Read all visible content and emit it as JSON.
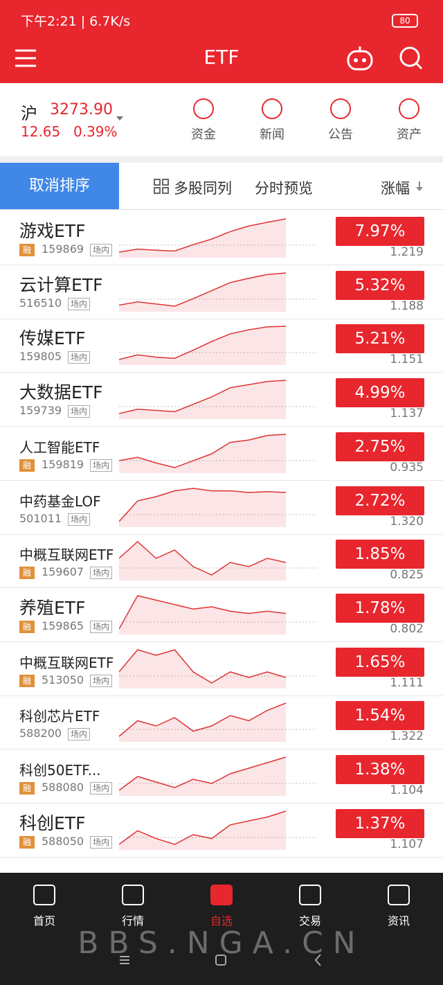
{
  "status_bar": {
    "time": "下午2:21 | 6.7K/s",
    "battery": "80"
  },
  "header": {
    "title": "ETF"
  },
  "index": {
    "name": "沪",
    "value": "3273.90",
    "change": "12.65",
    "change_pct": "0.39%"
  },
  "shortcuts": [
    "资金",
    "新闻",
    "公告",
    "资产"
  ],
  "toolbar": {
    "cancel_sort": "取消排序",
    "multi": "多股同列",
    "preview": "分时预览",
    "sort_by": "涨幅"
  },
  "rows": [
    {
      "name": "游戏ETF",
      "margin": "融",
      "code": "159869",
      "market": "场内",
      "change": "7.97%",
      "price": "1.219",
      "trend": [
        1.13,
        1.138,
        1.135,
        1.133,
        1.15,
        1.165,
        1.185,
        1.2,
        1.21,
        1.219
      ]
    },
    {
      "name": "云计算ETF",
      "code": "516510",
      "market": "场内",
      "change": "5.32%",
      "price": "1.188",
      "trend": [
        1.128,
        1.134,
        1.13,
        1.126,
        1.14,
        1.155,
        1.17,
        1.178,
        1.185,
        1.188
      ]
    },
    {
      "name": "传媒ETF",
      "code": "159805",
      "market": "场内",
      "change": "5.21%",
      "price": "1.151",
      "trend": [
        1.094,
        1.102,
        1.098,
        1.096,
        1.11,
        1.125,
        1.138,
        1.145,
        1.15,
        1.151
      ]
    },
    {
      "name": "大数据ETF",
      "code": "159739",
      "market": "场内",
      "change": "4.99%",
      "price": "1.137",
      "trend": [
        1.083,
        1.09,
        1.088,
        1.086,
        1.098,
        1.11,
        1.125,
        1.13,
        1.135,
        1.137
      ]
    },
    {
      "name": "人工智能ETF",
      "margin": "融",
      "code": "159819",
      "market": "场内",
      "change": "2.75%",
      "price": "0.935",
      "trend": [
        0.912,
        0.915,
        0.91,
        0.906,
        0.912,
        0.918,
        0.928,
        0.93,
        0.934,
        0.935
      ]
    },
    {
      "name": "中药基金LOF",
      "code": "501011",
      "market": "场内",
      "change": "2.72%",
      "price": "1.320",
      "trend": [
        1.285,
        1.31,
        1.315,
        1.322,
        1.325,
        1.322,
        1.322,
        1.32,
        1.321,
        1.32
      ]
    },
    {
      "name": "中概互联网ETF",
      "margin": "融",
      "code": "159607",
      "market": "场内",
      "change": "1.85%",
      "price": "0.825",
      "trend": [
        0.826,
        0.83,
        0.826,
        0.828,
        0.824,
        0.822,
        0.825,
        0.824,
        0.826,
        0.825
      ]
    },
    {
      "name": "养殖ETF",
      "margin": "融",
      "code": "159865",
      "market": "场内",
      "change": "1.78%",
      "price": "0.802",
      "trend": [
        0.795,
        0.81,
        0.808,
        0.806,
        0.804,
        0.805,
        0.803,
        0.802,
        0.803,
        0.802
      ]
    },
    {
      "name": "中概互联网ETF",
      "margin": "融",
      "code": "513050",
      "market": "场内",
      "change": "1.65%",
      "price": "1.111",
      "trend": [
        1.112,
        1.116,
        1.115,
        1.116,
        1.112,
        1.11,
        1.112,
        1.111,
        1.112,
        1.111
      ]
    },
    {
      "name": "科创芯片ETF",
      "code": "588200",
      "market": "场内",
      "change": "1.54%",
      "price": "1.322",
      "trend": [
        1.29,
        1.305,
        1.3,
        1.308,
        1.295,
        1.3,
        1.31,
        1.305,
        1.315,
        1.322
      ]
    },
    {
      "name": "科创50ETF...",
      "margin": "融",
      "code": "588080",
      "market": "场内",
      "change": "1.38%",
      "price": "1.104",
      "trend": [
        1.08,
        1.09,
        1.086,
        1.082,
        1.088,
        1.085,
        1.092,
        1.096,
        1.1,
        1.104
      ]
    },
    {
      "name": "科创ETF",
      "margin": "融",
      "code": "588050",
      "market": "场内",
      "change": "1.37%",
      "price": "1.107",
      "trend": [
        1.09,
        1.097,
        1.093,
        1.09,
        1.095,
        1.093,
        1.1,
        1.102,
        1.104,
        1.107
      ]
    }
  ],
  "tabs": [
    "首页",
    "行情",
    "自选",
    "交易",
    "资讯"
  ],
  "watermark": "BBS.NGA.CN"
}
